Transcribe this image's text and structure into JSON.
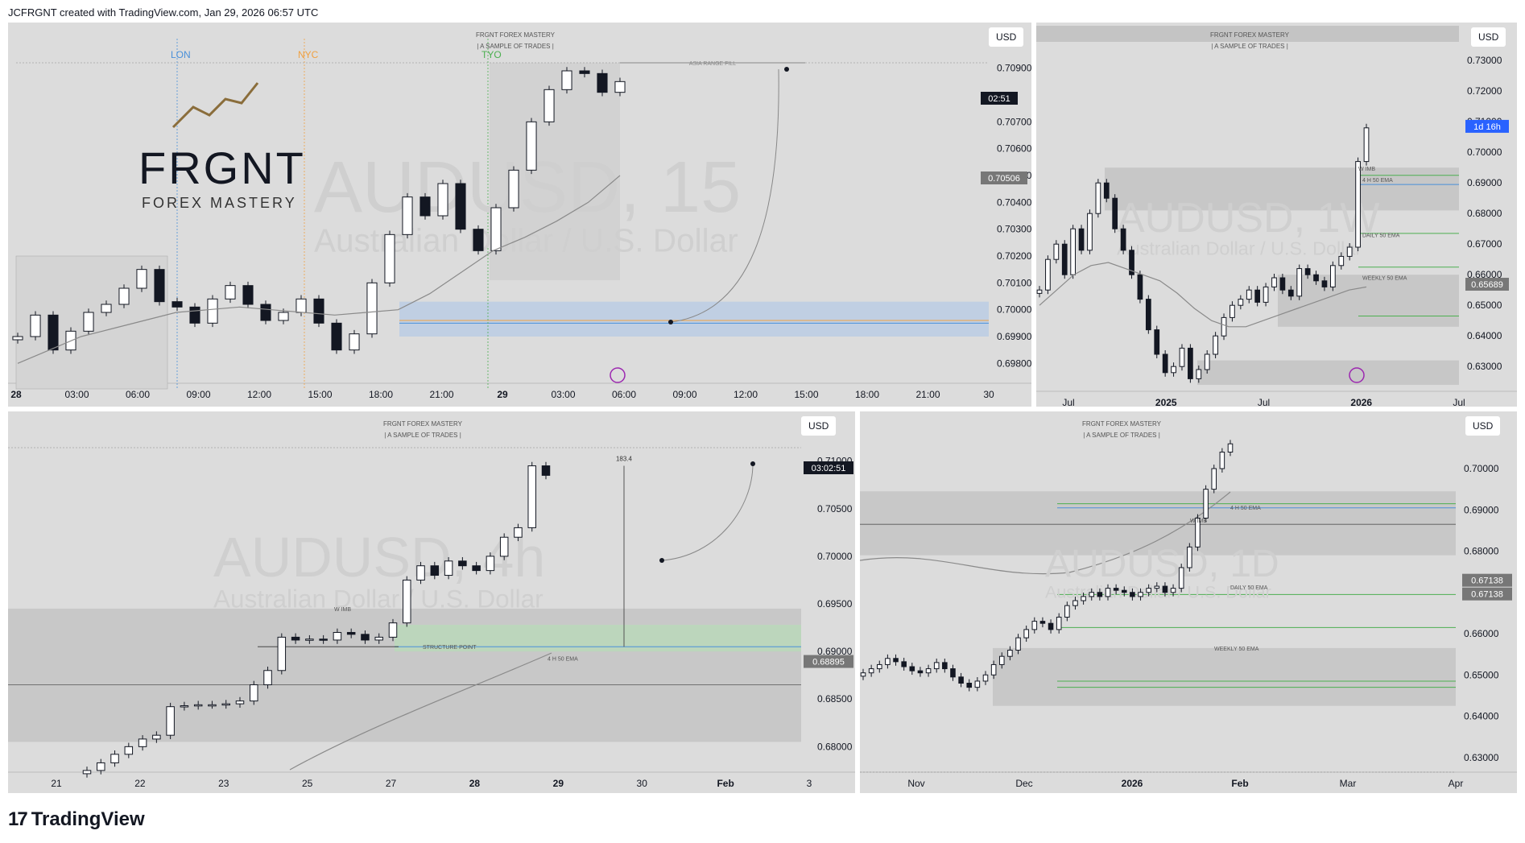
{
  "header": {
    "caption": "JCFRGNT created with TradingView.com, Jan 29, 2026 06:57 UTC"
  },
  "footer": {
    "logo_text": "TradingView"
  },
  "colors": {
    "panel_bg": "#dcdcdc",
    "candle": "#131722",
    "ema": "#8a8a8a",
    "zone_blue": "#aec6e8",
    "zone_green": "#b7dcb7",
    "zone_gray": "#c2c2c2",
    "lon": "#4a90d9",
    "nyc": "#f0a040",
    "tyo": "#4caf50",
    "timer_blue": "#2962ff"
  },
  "panels": [
    {
      "id": "p15m",
      "currency": "USD",
      "brand_small_1": "FRGNT FOREX MASTERY",
      "brand_small_2": "| A SAMPLE OF TRADES |",
      "watermark_symbol": "AUDUSD, 15",
      "watermark_name": "Australian Dollar / U.S. Dollar",
      "logo_title": "FRGNT",
      "logo_sub": "FOREX MASTERY",
      "session_labels": [
        "LON",
        "NYC",
        "TYO"
      ],
      "annotation": "ASIA RANGE FILL",
      "timer": "02:51",
      "last_price": "0.70506",
      "price_ticks": [
        "0.70900",
        "0.70700",
        "0.70600",
        "0.70500",
        "0.70400",
        "0.70300",
        "0.70200",
        "0.70100",
        "0.70000",
        "0.69900",
        "0.69800"
      ],
      "time_ticks": [
        "28",
        "03:00",
        "06:00",
        "09:00",
        "12:00",
        "15:00",
        "18:00",
        "21:00",
        "29",
        "03:00",
        "06:00",
        "09:00",
        "12:00",
        "15:00",
        "18:00",
        "21:00",
        "30"
      ]
    },
    {
      "id": "p1d",
      "currency": "USD",
      "brand_small_1": "FRGNT FOREX MASTERY",
      "brand_small_2": "| A SAMPLE OF TRADES |",
      "watermark_symbol": "AUDUSD, 1W",
      "watermark_name": "Australian Dollar / U.S. Dollar",
      "timer": "1d 16h",
      "last_price": "0.65689",
      "labels": [
        "W IMB",
        "4 H 50 EMA",
        "DAILY 50 EMA",
        "WEEKLY 50 EMA"
      ],
      "price_ticks": [
        "0.73000",
        "0.72000",
        "0.71000",
        "0.70000",
        "0.69000",
        "0.68000",
        "0.67000",
        "0.66000",
        "0.65000",
        "0.64000",
        "0.63000"
      ],
      "time_ticks": [
        "Jul",
        "2025",
        "Jul",
        "2026",
        "Jul"
      ]
    },
    {
      "id": "p4h",
      "currency": "USD",
      "brand_small_1": "FRGNT FOREX MASTERY",
      "brand_small_2": "| A SAMPLE OF TRADES |",
      "watermark_symbol": "AUDUSD, 4h",
      "watermark_name": "Australian Dollar / U.S. Dollar",
      "measure": "183.4",
      "timer": "03:02:51",
      "last_price": "0.68895",
      "labels": [
        "W IMB",
        "STRUCTURE POINT",
        "4 H 50 EMA"
      ],
      "price_ticks": [
        "0.71000",
        "0.70500",
        "0.70000",
        "0.69500",
        "0.69000",
        "0.68500",
        "0.68000"
      ],
      "time_ticks": [
        "21",
        "22",
        "23",
        "25",
        "27",
        "28",
        "29",
        "30",
        "Feb",
        "3"
      ]
    },
    {
      "id": "p1dd",
      "currency": "USD",
      "brand_small_1": "FRGNT FOREX MASTERY",
      "brand_small_2": "| A SAMPLE OF TRADES |",
      "watermark_symbol": "AUDUSD, 1D",
      "watermark_name": "Australian Dollar / U.S. Dollar",
      "last_price_1": "0.67138",
      "last_price_2": "0.67138",
      "labels": [
        "W IMB",
        "4 H 50 EMA",
        "DAILY 50 EMA",
        "WEEKLY 50 EMA"
      ],
      "price_ticks": [
        "0.70000",
        "0.69000",
        "0.68000",
        "0.67000",
        "0.66000",
        "0.65000",
        "0.64000",
        "0.63000"
      ],
      "time_ticks": [
        "Nov",
        "Dec",
        "2026",
        "Feb",
        "Mar",
        "Apr"
      ]
    }
  ],
  "chart_data": [
    {
      "type": "candlestick",
      "title": "AUDUSD, 15",
      "ylim": [
        0.6975,
        0.7095
      ],
      "price_series_approx": [
        0.699,
        0.6998,
        0.6985,
        0.6992,
        0.6999,
        0.7002,
        0.7008,
        0.7015,
        0.7003,
        0.7001,
        0.6995,
        0.7004,
        0.7009,
        0.7002,
        0.6996,
        0.6999,
        0.7004,
        0.6995,
        0.6985,
        0.6991,
        0.701,
        0.7028,
        0.7042,
        0.7035,
        0.7047,
        0.703,
        0.7022,
        0.7038,
        0.7052,
        0.707,
        0.7082,
        0.7089,
        0.7088,
        0.7081,
        0.7085
      ],
      "ema_approx": [
        0.698,
        0.6985,
        0.699,
        0.6993,
        0.6996,
        0.6999,
        0.7,
        0.7001,
        0.7,
        0.6999,
        0.6998,
        0.6999,
        0.7,
        0.7006,
        0.7014,
        0.7022,
        0.7027,
        0.7033,
        0.704,
        0.705
      ],
      "zone": [
        0.699,
        0.7003
      ],
      "last": 0.70506
    },
    {
      "type": "candlestick",
      "title": "AUDUSD, 1W",
      "ylim": [
        0.624,
        0.734
      ],
      "price_series_approx": [
        0.655,
        0.665,
        0.67,
        0.66,
        0.675,
        0.668,
        0.68,
        0.69,
        0.685,
        0.675,
        0.668,
        0.66,
        0.652,
        0.642,
        0.634,
        0.628,
        0.63,
        0.636,
        0.626,
        0.629,
        0.634,
        0.64,
        0.646,
        0.65,
        0.652,
        0.655,
        0.651,
        0.656,
        0.659,
        0.655,
        0.653,
        0.662,
        0.66,
        0.658,
        0.656,
        0.663,
        0.666,
        0.669,
        0.697,
        0.708
      ],
      "ema_approx": [
        0.65,
        0.655,
        0.66,
        0.663,
        0.664,
        0.662,
        0.66,
        0.658,
        0.654,
        0.649,
        0.645,
        0.643,
        0.643,
        0.645,
        0.647,
        0.649,
        0.651,
        0.653,
        0.655,
        0.656
      ],
      "last": 0.65689,
      "timer": "1d 16h"
    },
    {
      "type": "candlestick",
      "title": "AUDUSD, 4h",
      "ylim": [
        0.678,
        0.712
      ],
      "price_series_approx": [
        0.6775,
        0.6783,
        0.6792,
        0.68,
        0.6808,
        0.6812,
        0.6842,
        0.6843,
        0.6844,
        0.6844,
        0.6845,
        0.6848,
        0.6865,
        0.688,
        0.6915,
        0.6912,
        0.6913,
        0.6912,
        0.692,
        0.6918,
        0.6912,
        0.6915,
        0.693,
        0.6975,
        0.699,
        0.698,
        0.6995,
        0.699,
        0.6985,
        0.7,
        0.702,
        0.703,
        0.7095,
        0.7085
      ],
      "zone": [
        0.69,
        0.6928
      ],
      "w_imb": [
        0.6805,
        0.6945
      ],
      "measure": 183.4,
      "last": 0.68895
    },
    {
      "type": "candlestick",
      "title": "AUDUSD, 1D",
      "ylim": [
        0.628,
        0.708
      ],
      "price_series_approx": [
        0.6505,
        0.6515,
        0.6525,
        0.654,
        0.6532,
        0.652,
        0.651,
        0.6505,
        0.6515,
        0.653,
        0.6515,
        0.6495,
        0.648,
        0.647,
        0.6485,
        0.65,
        0.6525,
        0.6545,
        0.656,
        0.659,
        0.661,
        0.663,
        0.6625,
        0.661,
        0.664,
        0.6668,
        0.668,
        0.669,
        0.67,
        0.669,
        0.671,
        0.6705,
        0.67,
        0.669,
        0.67,
        0.671,
        0.6715,
        0.67,
        0.671,
        0.676,
        0.681,
        0.688,
        0.695,
        0.7,
        0.704,
        0.706
      ],
      "last": 0.67138
    }
  ]
}
